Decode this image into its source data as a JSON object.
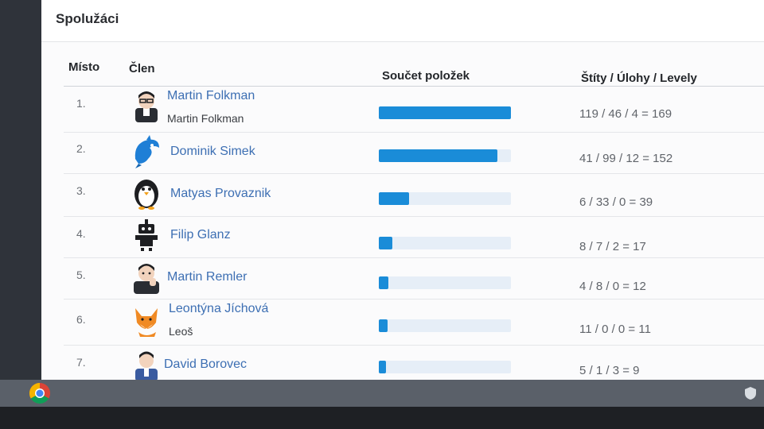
{
  "card": {
    "title": "Spolužáci"
  },
  "table": {
    "headers": {
      "rank": "Místo",
      "member": "Člen",
      "total": "Součet položek",
      "score": "Štíty / Úlohy / Levely"
    },
    "rows": [
      {
        "rank": "1.",
        "name": "Martin Folkman",
        "subname": "Martin Folkman",
        "avatar": "avatar-man-glasses-icon",
        "progress": 1.0,
        "score": "119 / 46 / 4 = 169"
      },
      {
        "rank": "2.",
        "name": "Dominik Simek",
        "subname": "",
        "avatar": "avatar-blue-dolphin-icon",
        "progress": 0.9,
        "score": "41 / 99 / 12 = 152"
      },
      {
        "rank": "3.",
        "name": "Matyas Provaznik",
        "subname": "",
        "avatar": "avatar-penguin-icon",
        "progress": 0.23,
        "score": "6 / 33 / 0 = 39"
      },
      {
        "rank": "4.",
        "name": "Filip Glanz",
        "subname": "",
        "avatar": "avatar-robot-icon",
        "progress": 0.1,
        "score": "8 / 7 / 2 = 17"
      },
      {
        "rank": "5.",
        "name": "Martin Remler",
        "subname": "",
        "avatar": "avatar-man-thinking-icon",
        "progress": 0.07,
        "score": "4 / 8 / 0 = 12"
      },
      {
        "rank": "6.",
        "name": "Leontýna Jíchová",
        "subname": "Leoš",
        "avatar": "avatar-fox-icon",
        "progress": 0.065,
        "score": "11 / 0 / 0 = 11"
      },
      {
        "rank": "7.",
        "name": "David Borovec",
        "subname": "",
        "avatar": "avatar-man-suit-icon",
        "progress": 0.055,
        "score": "5 / 1 / 3 = 9"
      }
    ]
  },
  "taskbar": {
    "launcher_icon": "chrome-icon",
    "tray_icon": "shield-icon"
  },
  "colors": {
    "bar_fill": "#1a8cd8",
    "bar_track": "#e6eef7",
    "name_link": "#3d6fb3"
  }
}
